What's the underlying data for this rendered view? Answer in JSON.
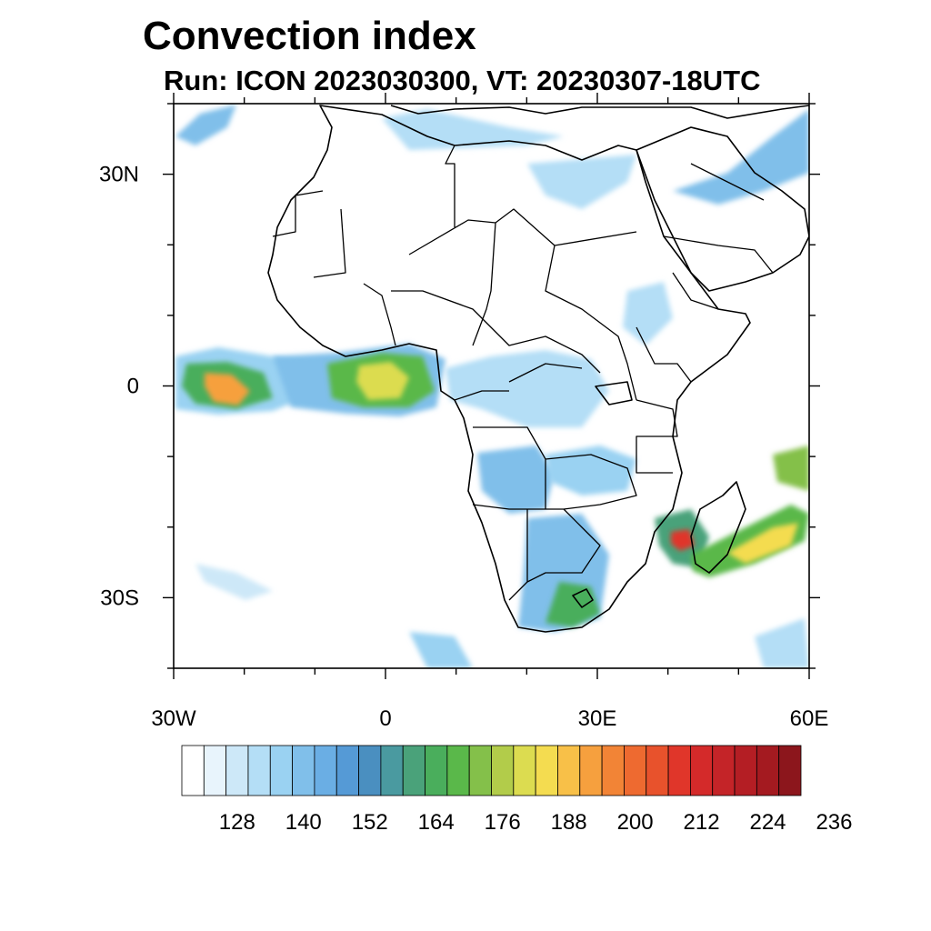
{
  "title": "Convection index",
  "subtitle": "Run: ICON 2023030300,  VT: 20230307-18UTC",
  "axes": {
    "x_ticks": [
      {
        "value": -30,
        "label": "30W"
      },
      {
        "value": 0,
        "label": "0"
      },
      {
        "value": 30,
        "label": "30E"
      },
      {
        "value": 60,
        "label": "60E"
      }
    ],
    "y_ticks": [
      {
        "value": 30,
        "label": "30N"
      },
      {
        "value": 0,
        "label": "0"
      },
      {
        "value": -30,
        "label": "30S"
      }
    ],
    "lon_range": [
      -30,
      60
    ],
    "lat_range": [
      -40,
      40
    ]
  },
  "colorbar": {
    "labels": [
      "128",
      "140",
      "152",
      "164",
      "176",
      "188",
      "200",
      "212",
      "224",
      "236"
    ],
    "colors": [
      "#ffffff",
      "#e8f4fc",
      "#cde8f8",
      "#b4def6",
      "#9ad2f2",
      "#80bfea",
      "#6aaee4",
      "#559ad6",
      "#4a8fc0",
      "#4a9aa0",
      "#4aa27a",
      "#4aae5c",
      "#5ab84a",
      "#84c04a",
      "#b2cc4a",
      "#dcdc50",
      "#f4dc50",
      "#f8c048",
      "#f6a03e",
      "#f28436",
      "#ee6a30",
      "#e8522c",
      "#e0362a",
      "#d42a2a",
      "#c42428",
      "#b41e24",
      "#a41a20",
      "#8c161c"
    ]
  }
}
